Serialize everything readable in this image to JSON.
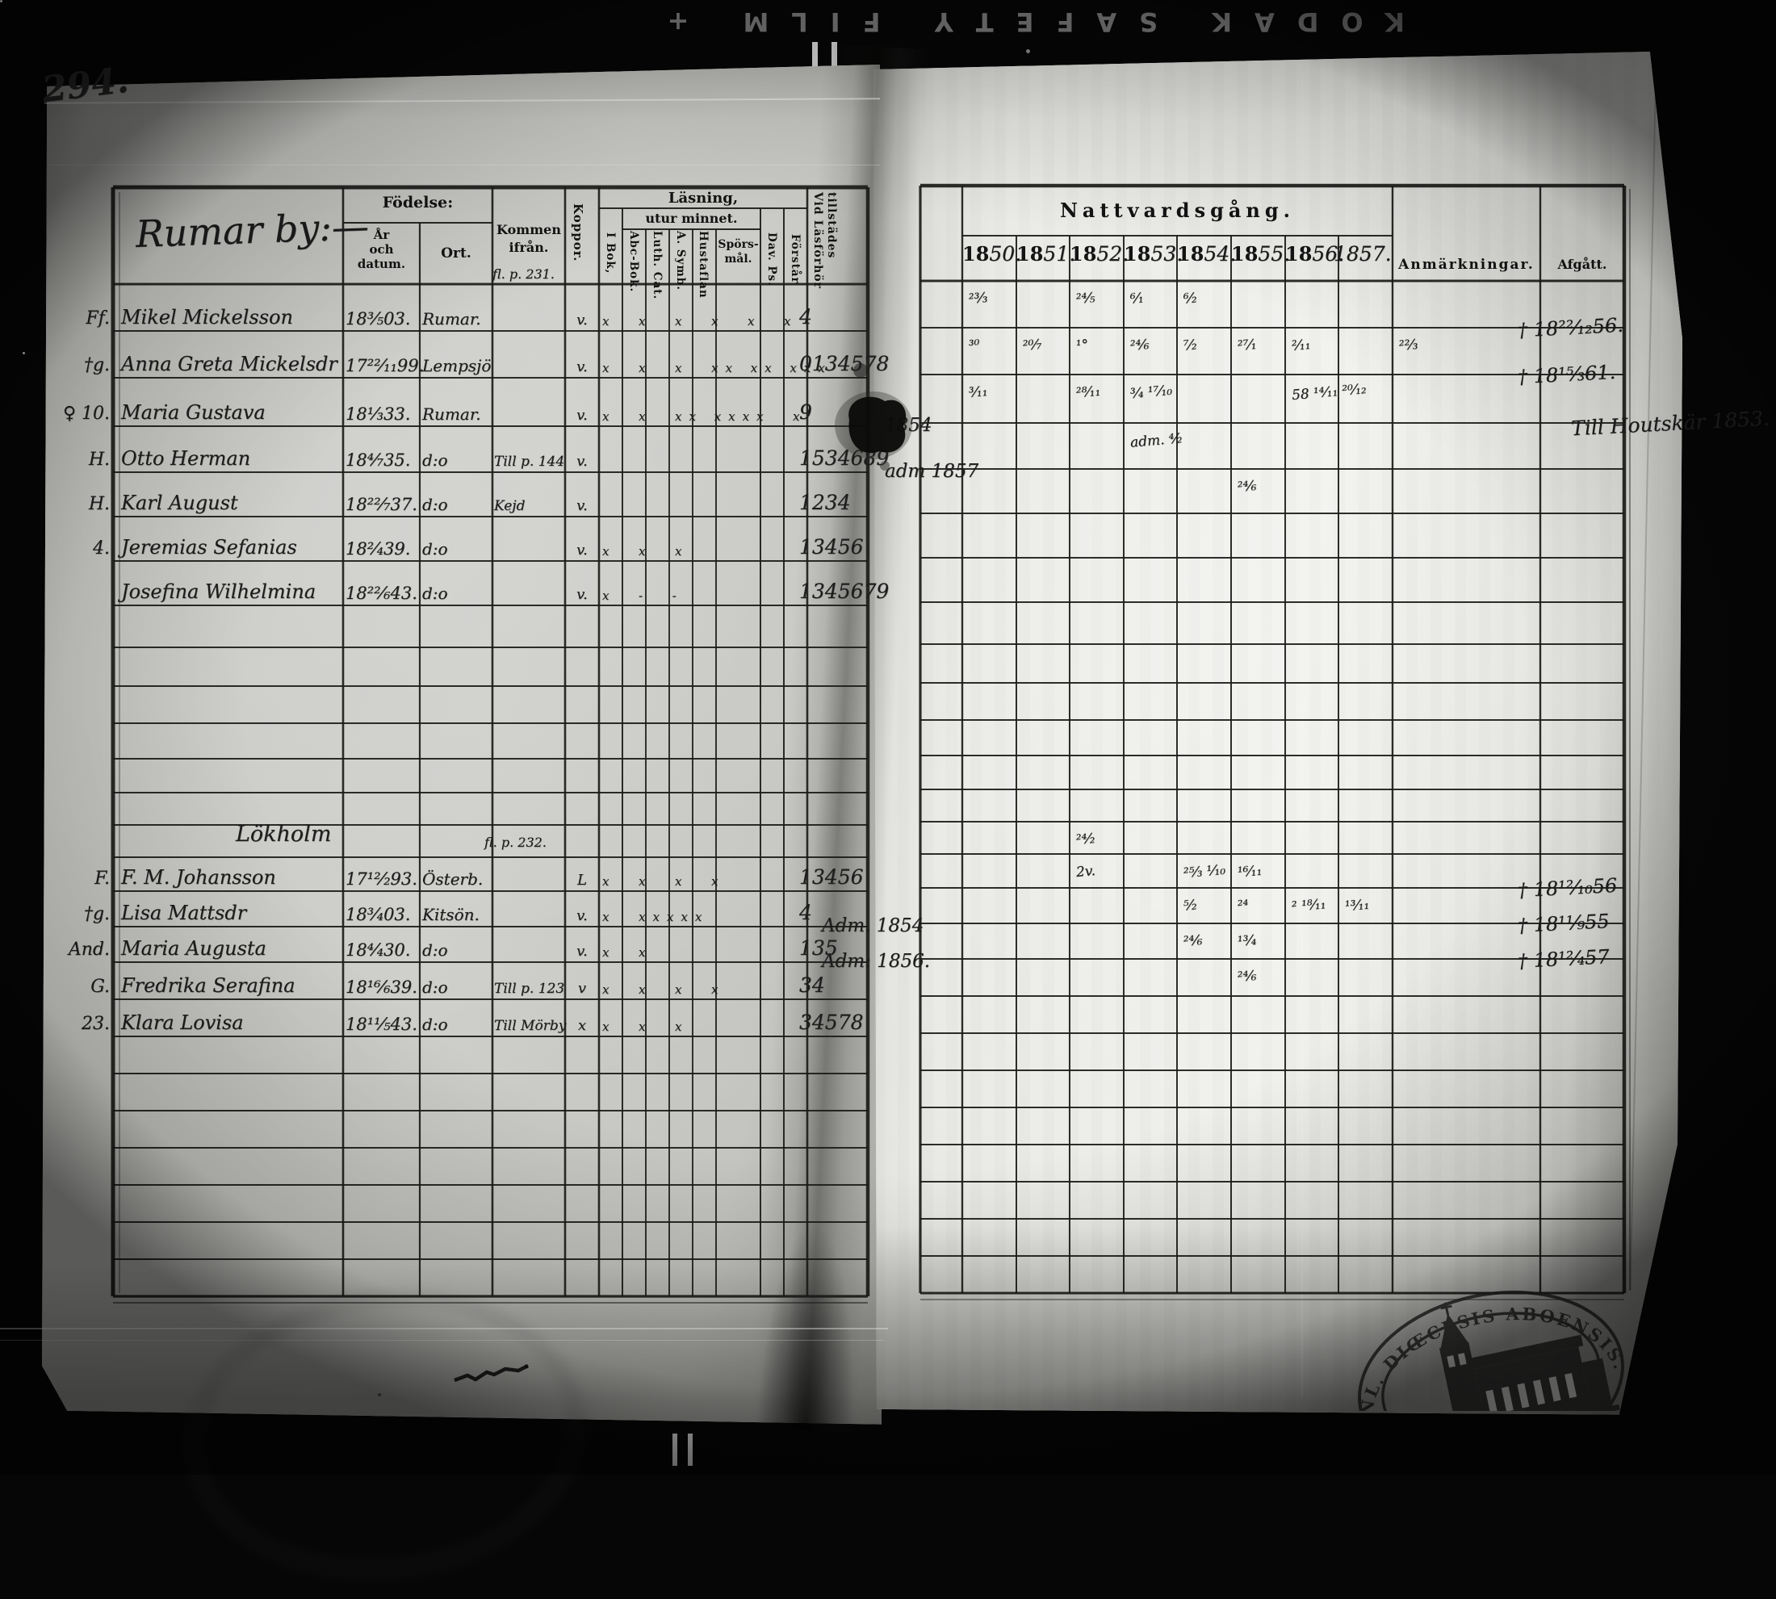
{
  "film": {
    "edge_text": "KODAK   SAFETY   FILM   +"
  },
  "left_page": {
    "page_number": "294.",
    "section1_title": "Rumar by:—",
    "section2_title": "Lökholm",
    "headers": {
      "fodelse": "Födelse:",
      "ar_och_datum": "År\noch\ndatum.",
      "ort": "Ort.",
      "kommen_ifran": "Kommen\nifrån.",
      "koppor": "Koppor.",
      "lasning": "Läsning,",
      "utur_minnet": "utur minnet.",
      "i_bok": "I Bok,",
      "abc_bok": "Abc-Bok.",
      "luth_cat": "Luth. Cat.",
      "a_symb": "A. Symb.",
      "hustaflan": "Hustaflan",
      "sporsmal": "Spörs-\nmål.",
      "dav_ps": "Dav. Ps.",
      "forstar": "Förstår",
      "vid_lasforhor": "Vid Läsförhör\ntillstädes"
    },
    "kommen_note_1": "fl. p. 231.",
    "kommen_note_2": "fl. p. 232.",
    "rows": [
      {
        "r": 0,
        "margin": "Ff.",
        "name": "Mikel Mickelsson",
        "born": "18³⁄₅03.",
        "ort": "Rumar.",
        "kommen": "",
        "koppor": "v.",
        "reading": "x  x  x  x  x  x",
        "tillst": "4"
      },
      {
        "r": 1,
        "margin": "†g.",
        "name": "Anna Greta Mickelsdr",
        "born": "17²²⁄₁₁99.",
        "ort": "Lempsjö",
        "kommen": "",
        "koppor": "v.",
        "reading": "x  x  x  xx xx xxx",
        "tillst": "0134578"
      },
      {
        "r": 2,
        "margin": "♀ 10.",
        "name": "Maria Gustava",
        "born": "18¹⁄₃33.",
        "ort": "Rumar.",
        "kommen": "",
        "koppor": "v.",
        "reading": "x  x  xx xxxx  x",
        "tillst": "9"
      },
      {
        "r": 3,
        "margin": "H.",
        "name": "Otto Herman",
        "born": "18⁴⁄₇35.",
        "ort": "d:o",
        "kommen": "Till p. 144",
        "koppor": "v.",
        "reading": "",
        "tillst": "1534689"
      },
      {
        "r": 4,
        "margin": "H.",
        "name": "Karl August",
        "born": "18²²⁄₇37.",
        "ort": "d:o",
        "kommen": "Kejd",
        "koppor": "v.",
        "reading": "",
        "tillst": "1234"
      },
      {
        "r": 5,
        "margin": "4.",
        "name": "Jeremias Sefanias",
        "born": "18²⁄₄39.",
        "ort": "d:o",
        "kommen": "",
        "koppor": "v.",
        "reading": "x  x  x",
        "tillst": "13456"
      },
      {
        "r": 6,
        "margin": "",
        "name": "Josefina Wilhelmina",
        "born": "18²²⁄₆43.",
        "ort": "d:o",
        "kommen": "",
        "koppor": "v.",
        "reading": "x  -  -",
        "tillst": "1345679"
      },
      {
        "r": 14,
        "margin": "F.",
        "name": "F. M. Johansson",
        "born": "17¹²⁄₂93.",
        "ort": "Österb.",
        "kommen": "",
        "koppor": "L",
        "reading": "x  x  x  x",
        "tillst": "13456"
      },
      {
        "r": 15,
        "margin": "†g.",
        "name": "Lisa Mattsdr",
        "born": "18³⁄₄03.",
        "ort": "Kitsön.",
        "kommen": "",
        "koppor": "v.",
        "reading": "x  xxxxx",
        "tillst": "4"
      },
      {
        "r": 16,
        "margin": "And.",
        "name": "Maria Augusta",
        "born": "18⁴⁄₄30.",
        "ort": "d:o",
        "kommen": "",
        "koppor": "v.",
        "reading": "x  x",
        "tillst": "135"
      },
      {
        "r": 17,
        "margin": "G.",
        "name": "Fredrika Serafina",
        "born": "18¹⁶⁄₆39.",
        "ort": "d:o",
        "kommen": "Till p. 123",
        "koppor": "v",
        "reading": "x  x  x  x",
        "tillst": "34"
      },
      {
        "r": 18,
        "margin": "23.",
        "name": "Klara Lovisa",
        "born": "18¹¹⁄₅43.",
        "ort": "d:o",
        "kommen": "Till Mörby",
        "koppor": "x",
        "reading": "x  x  x",
        "tillst": "34578"
      }
    ]
  },
  "right_page": {
    "headers": {
      "nattvardsgang": "Nattvardsgång.",
      "anmarkningar": "Anmärkningar.",
      "afgatt": "Afgått."
    },
    "years": [
      {
        "p": "18",
        "s": "50."
      },
      {
        "p": "18",
        "s": "51."
      },
      {
        "p": "18",
        "s": "52."
      },
      {
        "p": "18",
        "s": "53."
      },
      {
        "p": "18",
        "s": "54."
      },
      {
        "p": "18",
        "s": "55."
      },
      {
        "p": "18",
        "s": "56."
      },
      {
        "p": "",
        "s": "1857."
      }
    ],
    "marks": [
      {
        "r": 0,
        "c": 0,
        "t": "²³⁄₃"
      },
      {
        "r": 0,
        "c": 2,
        "t": "²⁴⁄₅"
      },
      {
        "r": 0,
        "c": 3,
        "t": "⁶⁄₁"
      },
      {
        "r": 0,
        "c": 4,
        "t": "⁶⁄₂"
      },
      {
        "r": 1,
        "c": 0,
        "t": "³⁰"
      },
      {
        "r": 1,
        "c": 1,
        "t": "²⁰⁄₇"
      },
      {
        "r": 1,
        "c": 2,
        "t": "¹°"
      },
      {
        "r": 1,
        "c": 3,
        "t": "²⁴⁄₆"
      },
      {
        "r": 1,
        "c": 4,
        "t": "⁷⁄₂"
      },
      {
        "r": 1,
        "c": 5,
        "t": "²⁷⁄₁"
      },
      {
        "r": 1,
        "c": 6,
        "t": "²⁄₁₁"
      },
      {
        "r": 1,
        "c": 8,
        "t": "²²⁄₃"
      },
      {
        "r": 2,
        "c": 0,
        "t": "³⁄₁₁"
      },
      {
        "r": 2,
        "c": 2,
        "t": "²⁸⁄₁₁"
      },
      {
        "r": 2,
        "c": 3,
        "t": "³⁄₄  ¹⁷⁄₁₀"
      },
      {
        "r": 2,
        "c": 6,
        "t": "58 ¹⁴⁄₁₁ ²⁰⁄₁₂"
      },
      {
        "r": 3,
        "c": 3,
        "t": "adm. ⁴⁄₂"
      },
      {
        "r": 4,
        "c": 5,
        "t": "²⁴⁄₆"
      },
      {
        "r": 13,
        "c": 2,
        "t": "²⁴⁄₂"
      },
      {
        "r": 14,
        "c": 2,
        "t": "2v."
      },
      {
        "r": 14,
        "c": 4,
        "t": "²⁵⁄₃ ¹⁄₁₀"
      },
      {
        "r": 14,
        "c": 5,
        "t": "¹⁶⁄₁₁"
      },
      {
        "r": 15,
        "c": 4,
        "t": "⁵⁄₂"
      },
      {
        "r": 15,
        "c": 5,
        "t": "²⁴"
      },
      {
        "r": 15,
        "c": 6,
        "t": "²  ¹⁸⁄₁₁"
      },
      {
        "r": 15,
        "c": 7,
        "t": "¹³⁄₁₁"
      },
      {
        "r": 16,
        "c": 4,
        "t": "²⁴⁄₆"
      },
      {
        "r": 16,
        "c": 5,
        "t": "¹³⁄₄"
      },
      {
        "r": 17,
        "c": 5,
        "t": "²⁴⁄₆"
      }
    ],
    "gutter_notes": [
      {
        "r": 3,
        "cls": "g1",
        "t": "1854"
      },
      {
        "r": 4,
        "cls": "g1",
        "t": "adm 1857"
      },
      {
        "r": 16,
        "cls": "g2",
        "t": "Adm. 1854"
      },
      {
        "r": 17,
        "cls": "g2",
        "t": "Adm: 1856."
      }
    ],
    "afgatt": [
      {
        "r": 0,
        "t": "† 18²²⁄₁₂56."
      },
      {
        "r": 1,
        "t": "† 18¹⁵⁄₃61."
      },
      {
        "r": 2,
        "cls": "till",
        "t": "Till Houtskär 1853."
      },
      {
        "r": 14,
        "t": "† 18¹²⁄₁₀56"
      },
      {
        "r": 15,
        "t": "† 18¹¹⁄₉55"
      },
      {
        "r": 16,
        "t": "† 18¹²⁄₄57"
      }
    ]
  },
  "stamp": {
    "arc_text": "INL. DIŒCESIS ABOENSIS. MAG"
  }
}
